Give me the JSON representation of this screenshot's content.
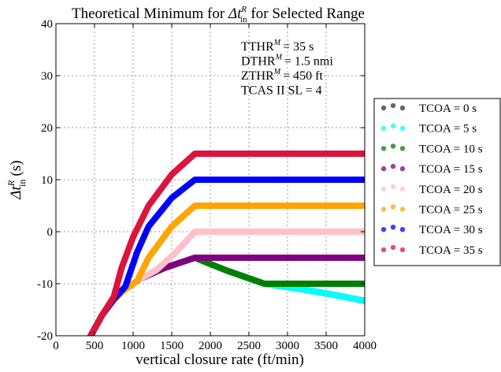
{
  "chart_data": {
    "type": "scatter",
    "title": "Theoretical Minimum for Δt_in^R for Selected Range",
    "title_parts": {
      "prefix": "Theoretical Minimum for ",
      "symbol": "Δt",
      "sup": "R",
      "sub": "in",
      "suffix": " for Selected Range"
    },
    "xlabel": "vertical closure rate (ft/min)",
    "ylabel": "Δt_in^R (s)",
    "ylabel_parts": {
      "symbol": "Δt",
      "sup": "R",
      "sub": "in",
      "unit": "(s)"
    },
    "xlim": [
      0,
      4000
    ],
    "ylim": [
      -20,
      40
    ],
    "x_ticks": [
      0,
      500,
      1000,
      1500,
      2000,
      2500,
      3000,
      3500,
      4000
    ],
    "y_ticks": [
      -20,
      -10,
      0,
      10,
      20,
      30,
      40
    ],
    "grid": true,
    "legend_position": "right-outside",
    "annotations": [
      {
        "label": "TTHR",
        "sup": "M",
        "value": "= 35 s"
      },
      {
        "label": "DTHR",
        "sup": "M",
        "value": "= 1.5 nmi"
      },
      {
        "label": "ZTHR",
        "sup": "M",
        "value": "= 450 ft"
      },
      {
        "label": "TCAS II SL = 4",
        "sup": "",
        "value": ""
      }
    ],
    "series": [
      {
        "name": "TCOA = 0 s",
        "color": "#333333",
        "points": [
          [
            450,
            -20
          ],
          [
            600,
            -16
          ],
          [
            750,
            -13
          ],
          [
            900,
            -11
          ],
          [
            1100,
            -9
          ],
          [
            1400,
            -7
          ],
          [
            1800,
            -5
          ],
          [
            2200,
            -7.4
          ],
          [
            2700,
            -10
          ],
          [
            3200,
            -11.1
          ],
          [
            3600,
            -12.1
          ],
          [
            4000,
            -13.3
          ]
        ]
      },
      {
        "name": "TCOA = 5 s",
        "color": "#00ffff",
        "points": [
          [
            450,
            -20
          ],
          [
            600,
            -16
          ],
          [
            750,
            -13
          ],
          [
            900,
            -11
          ],
          [
            1100,
            -9
          ],
          [
            1400,
            -7
          ],
          [
            1800,
            -5
          ],
          [
            2200,
            -7.4
          ],
          [
            2700,
            -10
          ],
          [
            3200,
            -11.1
          ],
          [
            3600,
            -12.1
          ],
          [
            4000,
            -13.3
          ]
        ]
      },
      {
        "name": "TCOA = 10 s",
        "color": "#008000",
        "points": [
          [
            450,
            -20
          ],
          [
            600,
            -16
          ],
          [
            750,
            -13
          ],
          [
            900,
            -11
          ],
          [
            1100,
            -9
          ],
          [
            1400,
            -7
          ],
          [
            1800,
            -5
          ],
          [
            2200,
            -7.4
          ],
          [
            2700,
            -10
          ],
          [
            3200,
            -10
          ],
          [
            4000,
            -10
          ]
        ]
      },
      {
        "name": "TCOA = 15 s",
        "color": "#800080",
        "points": [
          [
            450,
            -20
          ],
          [
            600,
            -16
          ],
          [
            750,
            -13
          ],
          [
            900,
            -11
          ],
          [
            1100,
            -9
          ],
          [
            1400,
            -7
          ],
          [
            1800,
            -5
          ],
          [
            2500,
            -5
          ],
          [
            3200,
            -5
          ],
          [
            4000,
            -5
          ]
        ]
      },
      {
        "name": "TCOA = 20 s",
        "color": "#ffc0cb",
        "points": [
          [
            450,
            -20
          ],
          [
            600,
            -16
          ],
          [
            750,
            -13
          ],
          [
            900,
            -11
          ],
          [
            1100,
            -9
          ],
          [
            1300,
            -7.4
          ],
          [
            1550,
            -4
          ],
          [
            1800,
            0
          ],
          [
            2500,
            0
          ],
          [
            3200,
            0
          ],
          [
            4000,
            0
          ]
        ]
      },
      {
        "name": "TCOA = 25 s",
        "color": "#ffa500",
        "points": [
          [
            450,
            -20
          ],
          [
            600,
            -16
          ],
          [
            750,
            -13
          ],
          [
            900,
            -11
          ],
          [
            1050,
            -9.5
          ],
          [
            1200,
            -5
          ],
          [
            1500,
            1
          ],
          [
            1800,
            5
          ],
          [
            2500,
            5
          ],
          [
            3200,
            5
          ],
          [
            4000,
            5
          ]
        ]
      },
      {
        "name": "TCOA = 30 s",
        "color": "#0000ff",
        "points": [
          [
            450,
            -20
          ],
          [
            600,
            -16
          ],
          [
            750,
            -13
          ],
          [
            900,
            -10.5
          ],
          [
            1050,
            -4
          ],
          [
            1200,
            1
          ],
          [
            1500,
            6.5
          ],
          [
            1800,
            10
          ],
          [
            2500,
            10
          ],
          [
            3200,
            10
          ],
          [
            4000,
            10
          ]
        ]
      },
      {
        "name": "TCOA = 35 s",
        "color": "#dc143c",
        "points": [
          [
            450,
            -20
          ],
          [
            600,
            -16
          ],
          [
            750,
            -12.5
          ],
          [
            850,
            -7
          ],
          [
            1000,
            -1
          ],
          [
            1200,
            5
          ],
          [
            1500,
            11
          ],
          [
            1800,
            15
          ],
          [
            2500,
            15
          ],
          [
            3200,
            15
          ],
          [
            4000,
            15
          ]
        ]
      }
    ]
  }
}
